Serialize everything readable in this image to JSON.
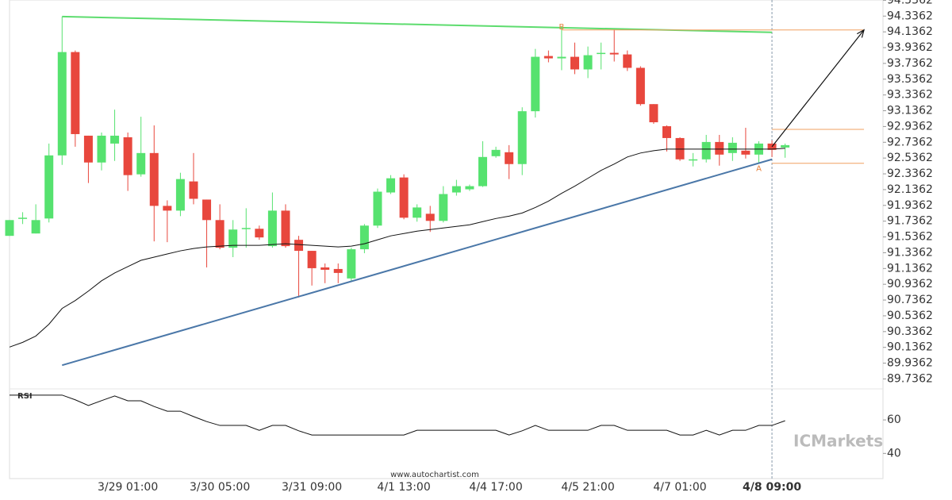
{
  "chart_data": {
    "type": "candlestick",
    "categories": [
      null,
      null,
      null,
      null,
      null,
      null,
      null,
      null,
      null,
      "3/29 01:00",
      null,
      null,
      null,
      null,
      null,
      null,
      "3/30 05:00",
      null,
      null,
      null,
      null,
      null,
      null,
      "3/31 09:00",
      null,
      null,
      null,
      null,
      null,
      null,
      "4/1 13:00",
      null,
      null,
      null,
      null,
      null,
      null,
      "4/4 17:00",
      null,
      null,
      null,
      null,
      null,
      null,
      "4/5 21:00",
      null,
      null,
      null,
      null,
      null,
      null,
      "4/7 01:00",
      null,
      null,
      null,
      null,
      null,
      null,
      "4/8 09:00",
      null
    ],
    "current_index": 58,
    "up_color": "#56e26f",
    "down_color": "#e8473d",
    "open": [
      91.55,
      91.77,
      91.58,
      91.77,
      92.57,
      93.88,
      92.82,
      92.48,
      92.72,
      92.8,
      92.33,
      92.6,
      91.93,
      91.87,
      92.24,
      92.01,
      91.75,
      91.4,
      91.64,
      91.64,
      91.42,
      91.87,
      91.5,
      91.36,
      91.15,
      91.13,
      91.01,
      91.38,
      91.68,
      92.1,
      92.29,
      91.78,
      91.83,
      91.74,
      92.1,
      92.14,
      92.18,
      92.56,
      92.61,
      92.46,
      93.13,
      93.83,
      93.8,
      93.82,
      93.66,
      93.86,
      93.87,
      93.85,
      93.68,
      93.22,
      92.94,
      92.79,
      92.52,
      92.52,
      92.74,
      92.6,
      92.63,
      92.58,
      92.72,
      92.67
    ],
    "high": [
      91.75,
      91.85,
      91.95,
      92.72,
      94.33,
      93.9,
      92.82,
      92.86,
      93.15,
      92.86,
      93.06,
      92.95,
      92.0,
      92.35,
      92.6,
      92.01,
      91.95,
      91.75,
      91.9,
      91.68,
      92.1,
      91.95,
      91.55,
      91.36,
      91.2,
      91.2,
      91.4,
      91.7,
      92.15,
      92.32,
      92.33,
      91.95,
      91.93,
      92.18,
      92.26,
      92.2,
      92.75,
      92.68,
      92.7,
      93.18,
      93.92,
      93.9,
      94.2,
      94.0,
      93.95,
      94.0,
      94.17,
      93.9,
      93.7,
      93.22,
      92.95,
      92.8,
      92.6,
      92.83,
      92.83,
      92.8,
      92.92,
      92.75,
      92.76,
      92.72
    ],
    "low": [
      91.55,
      91.7,
      91.58,
      91.72,
      92.45,
      92.68,
      92.22,
      92.38,
      92.5,
      92.12,
      92.3,
      91.48,
      91.47,
      91.8,
      91.95,
      91.15,
      91.38,
      91.28,
      91.4,
      91.5,
      91.4,
      91.4,
      90.77,
      90.92,
      90.95,
      90.95,
      90.98,
      91.33,
      91.65,
      92.08,
      91.76,
      91.73,
      91.6,
      91.72,
      92.06,
      92.12,
      92.17,
      92.54,
      92.27,
      92.32,
      93.05,
      93.75,
      93.65,
      93.6,
      93.55,
      93.66,
      93.76,
      93.64,
      93.2,
      92.97,
      92.62,
      92.5,
      92.43,
      92.48,
      92.44,
      92.5,
      92.53,
      92.47,
      92.55,
      92.54
    ],
    "close": [
      91.75,
      91.78,
      91.75,
      92.57,
      93.88,
      92.84,
      92.48,
      92.82,
      92.82,
      92.32,
      92.6,
      91.93,
      91.87,
      92.27,
      92.02,
      91.75,
      91.4,
      91.63,
      91.65,
      91.53,
      91.87,
      91.42,
      91.36,
      91.14,
      91.12,
      91.08,
      91.38,
      91.68,
      92.11,
      92.28,
      91.78,
      91.91,
      91.74,
      92.08,
      92.18,
      92.18,
      92.55,
      92.64,
      92.46,
      93.13,
      93.82,
      93.8,
      93.82,
      93.66,
      93.84,
      93.87,
      93.85,
      93.68,
      93.22,
      92.99,
      92.79,
      92.52,
      92.52,
      92.74,
      92.58,
      92.73,
      92.58,
      92.72,
      92.64,
      92.7
    ],
    "ma": {
      "color": "#111111",
      "values": [
        90.14,
        90.2,
        90.28,
        90.43,
        90.63,
        90.73,
        90.85,
        90.98,
        91.08,
        91.16,
        91.24,
        91.28,
        91.32,
        91.36,
        91.39,
        91.41,
        91.42,
        91.43,
        91.43,
        91.43,
        91.44,
        91.45,
        91.44,
        91.43,
        91.42,
        91.41,
        91.42,
        91.45,
        91.5,
        91.55,
        91.58,
        91.61,
        91.63,
        91.65,
        91.67,
        91.69,
        91.73,
        91.77,
        91.8,
        91.84,
        91.91,
        91.99,
        92.09,
        92.18,
        92.28,
        92.38,
        92.46,
        92.55,
        92.6,
        92.63,
        92.65,
        92.65,
        92.65,
        92.65,
        92.65,
        92.65,
        92.65,
        92.65,
        92.65,
        92.66
      ]
    },
    "trendlines": [
      {
        "color": "#5ddc6e",
        "x": [
          4,
          58
        ],
        "y": [
          94.33,
          94.13
        ]
      },
      {
        "color": "#4a77a8",
        "x": [
          4,
          58
        ],
        "y": [
          89.91,
          92.52
        ]
      }
    ],
    "levels": [
      {
        "color": "#f0a060",
        "x": [
          42,
          65
        ],
        "y": 94.16
      },
      {
        "color": "#f0a060",
        "x": [
          58,
          65
        ],
        "y": 92.9
      },
      {
        "color": "#f0a060",
        "x": [
          58,
          65
        ],
        "y": 92.47
      }
    ],
    "forecast": {
      "color": "#111111",
      "x": [
        58,
        65
      ],
      "y": [
        92.68,
        94.16
      ]
    },
    "pattern_points": [
      {
        "label": "B",
        "x": 42,
        "y": 94.2
      },
      {
        "label": "A",
        "x": 57,
        "y": 92.4
      }
    ],
    "ylim": [
      89.61,
      94.54
    ],
    "yticks": [
      89.7362,
      89.9362,
      90.1362,
      90.3362,
      90.5362,
      90.7362,
      90.9362,
      91.1362,
      91.3362,
      91.5362,
      91.7362,
      91.9362,
      92.1362,
      92.3362,
      92.5362,
      92.7362,
      92.9362,
      93.1362,
      93.3362,
      93.5362,
      93.7362,
      93.9362,
      94.1362,
      94.3362,
      94.5362
    ],
    "rsi": {
      "label": "RSI",
      "color": "#111111",
      "values": [
        74.8,
        74.8,
        74.8,
        74.8,
        74.8,
        72,
        68.6,
        71.5,
        74.3,
        71.4,
        71.4,
        68,
        65.2,
        65.2,
        62,
        59,
        56.7,
        56.7,
        56.7,
        53.8,
        56.7,
        56.7,
        53.5,
        51,
        51,
        51,
        51,
        51,
        51,
        51,
        51,
        53.8,
        53.8,
        53.8,
        53.8,
        53.8,
        53.8,
        53.8,
        51,
        53.5,
        56.7,
        53.8,
        53.8,
        53.8,
        53.8,
        56.7,
        56.7,
        53.8,
        53.8,
        53.8,
        53.8,
        51,
        51,
        53.8,
        51,
        53.8,
        53.8,
        56.7,
        56.7,
        59.5
      ],
      "ylim": [
        25,
        78.5
      ],
      "yticks": [
        40,
        60
      ]
    },
    "source": "www.autochartist.com",
    "watermark": "ICMarkets"
  }
}
